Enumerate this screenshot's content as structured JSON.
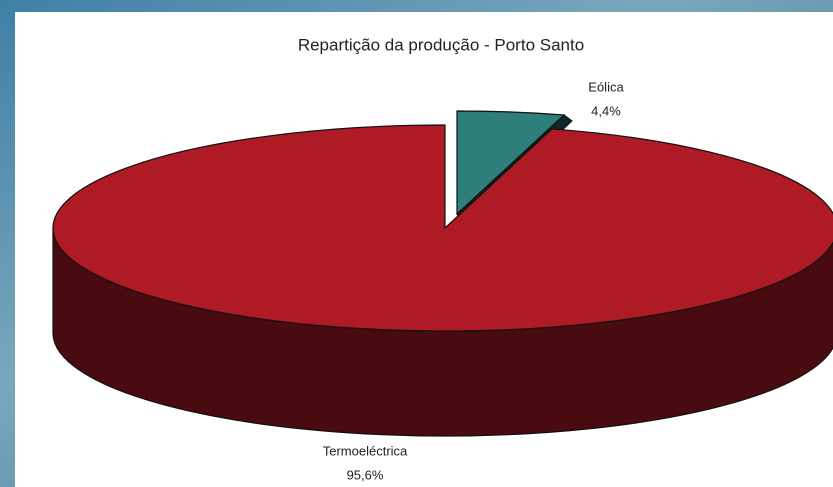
{
  "chart_data": {
    "type": "pie",
    "title": "Repartição da produção - Porto Santo",
    "categories": [
      "Eólica",
      "Termoeléctrica"
    ],
    "values": [
      4.4,
      95.6
    ],
    "value_labels": [
      "4,4%",
      "95,6%"
    ],
    "colors": [
      "#2e7f7b",
      "#ae1b25"
    ]
  }
}
